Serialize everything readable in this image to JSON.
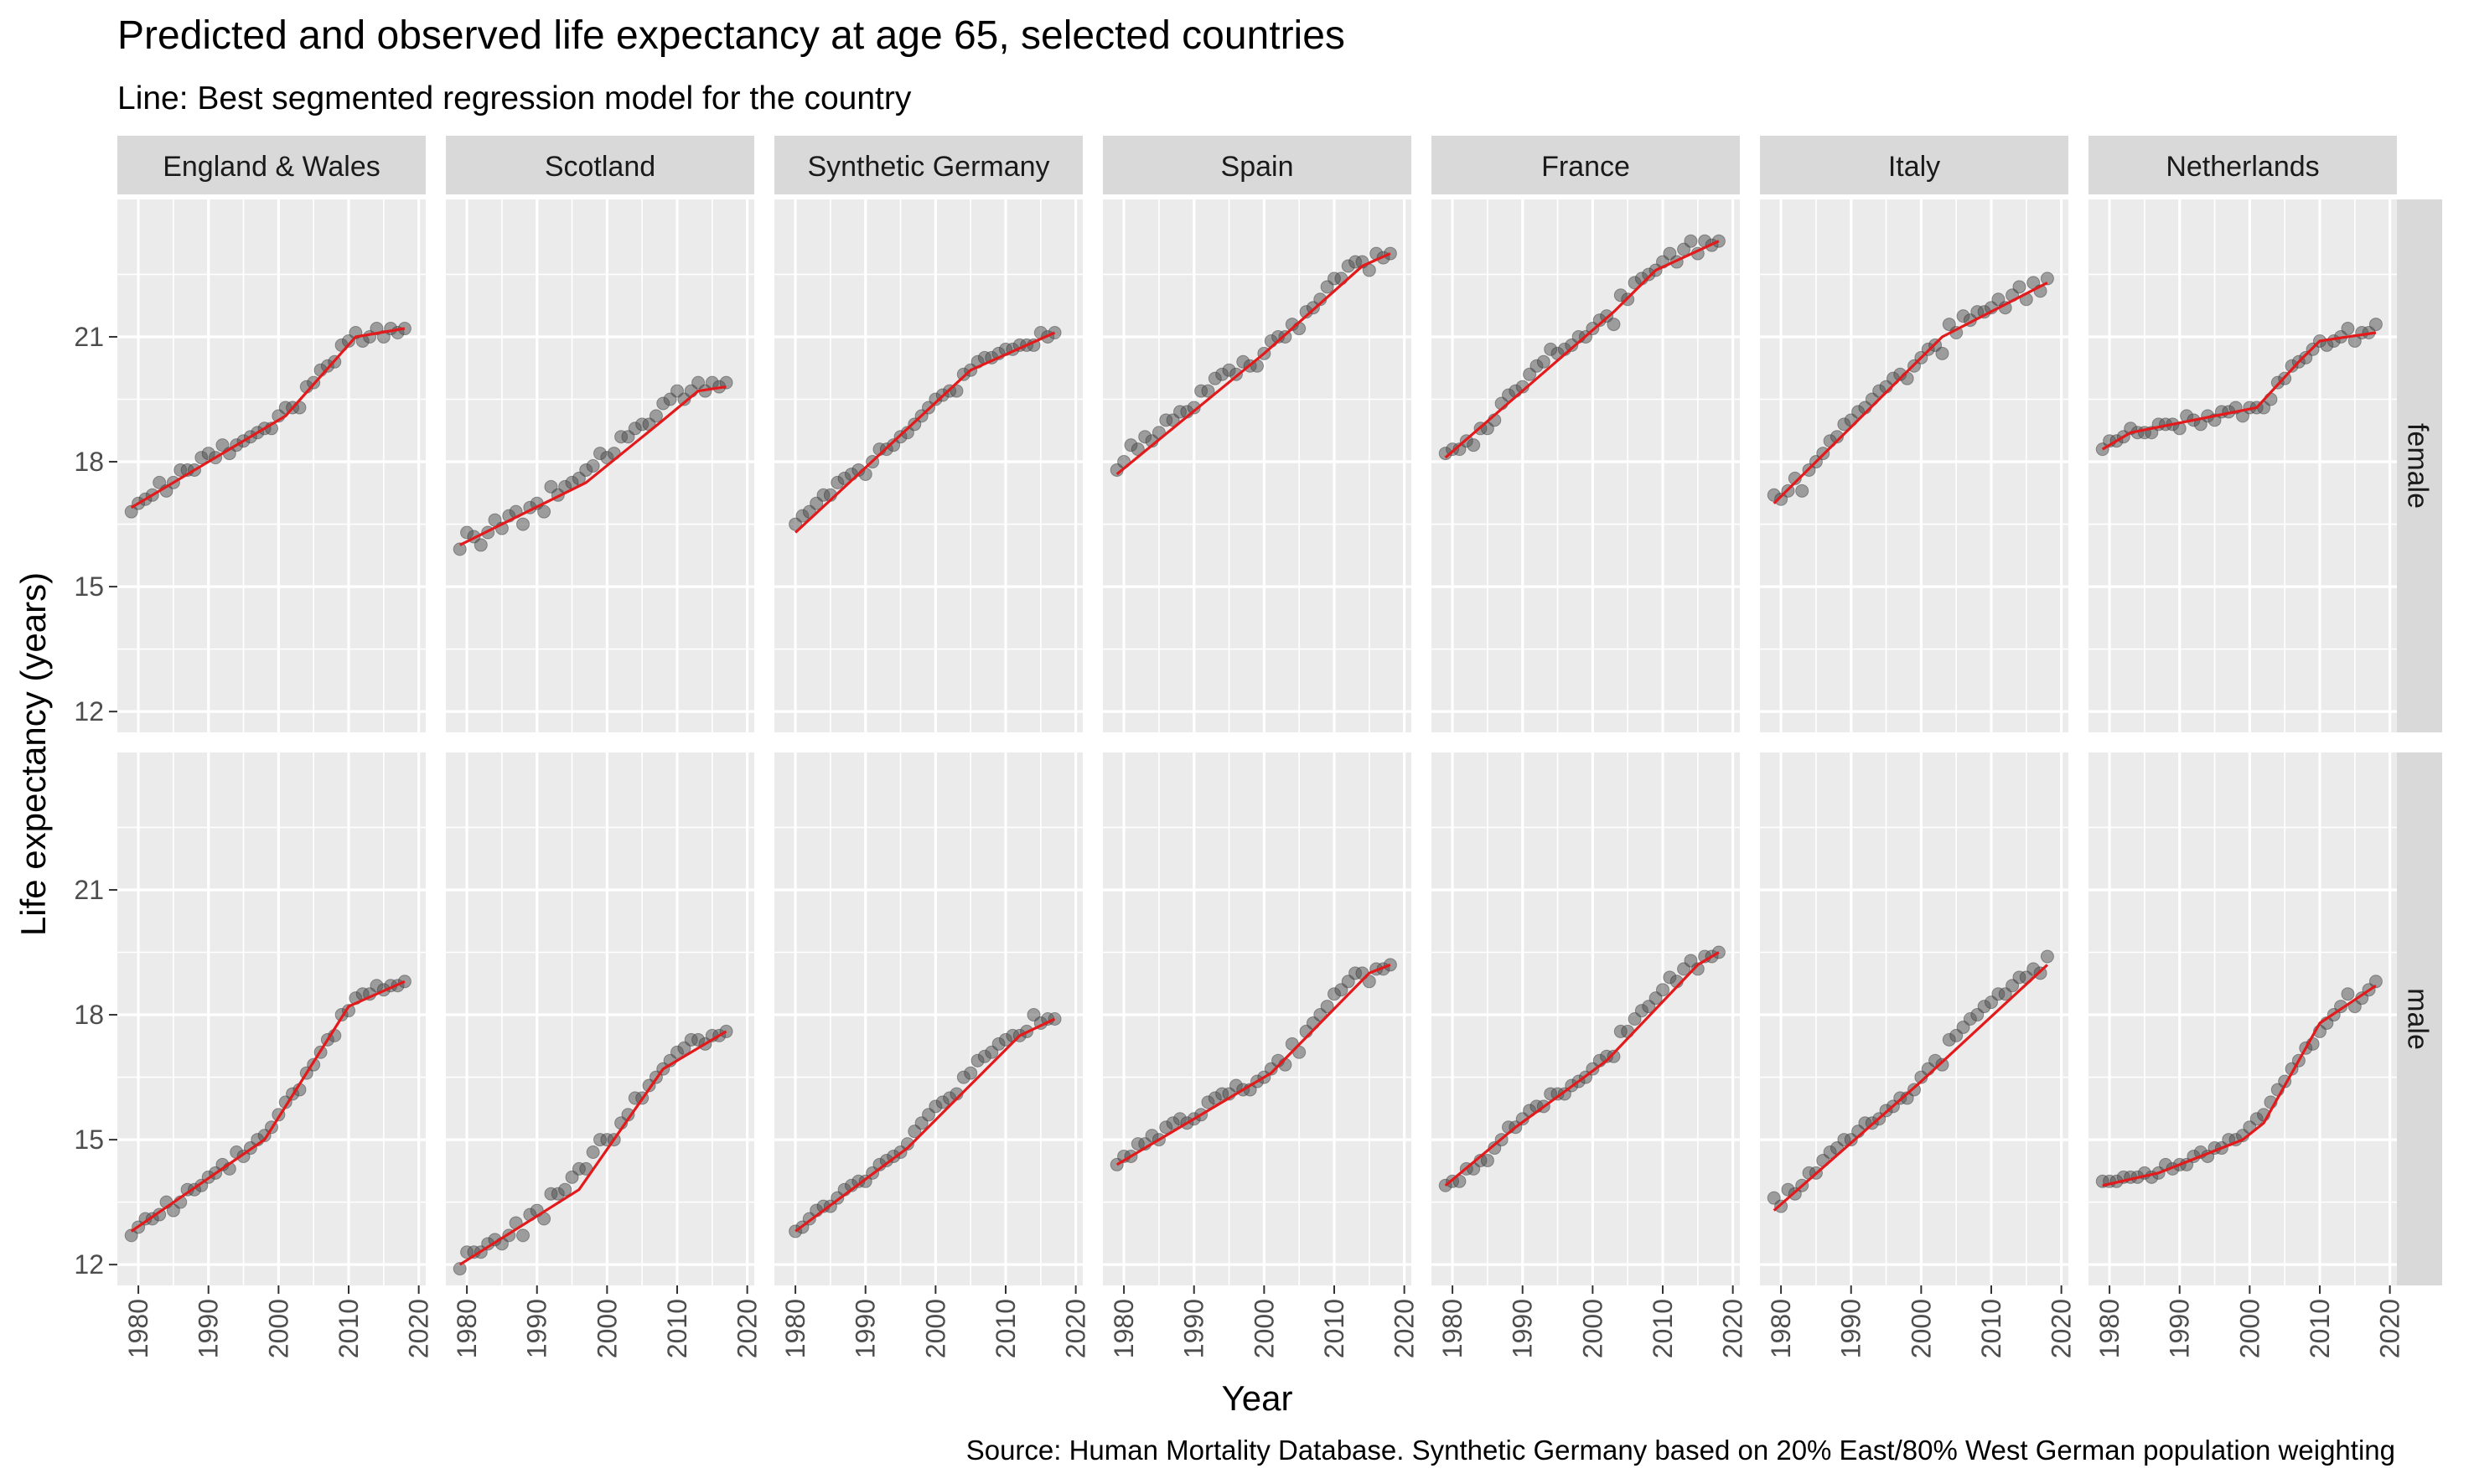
{
  "chart_data": {
    "type": "line",
    "title": "Predicted and observed life expectancy at age 65, selected countries",
    "subtitle": "Line: Best segmented regression model for the country",
    "xlabel": "Year",
    "ylabel": "Life expectancy (years)",
    "caption": "Source: Human Mortality Database. Synthetic Germany based on 20% East/80% West German population weighting",
    "xlim": [
      1977,
      2021
    ],
    "ylim": [
      11.5,
      24.3
    ],
    "x_ticks": [
      1980,
      1990,
      2000,
      2010,
      2020
    ],
    "y_ticks": [
      12,
      15,
      18,
      21
    ],
    "grid": true,
    "colors": {
      "panel_bg": "#ebebeb",
      "grid": "#ffffff",
      "strip_bg": "#d9d9d9",
      "point": "#4d4d4d",
      "fit_line": "#e31a1c"
    },
    "columns": [
      "England & Wales",
      "Scotland",
      "Synthetic Germany",
      "Spain",
      "France",
      "Italy",
      "Netherlands"
    ],
    "rows": [
      "female",
      "male"
    ],
    "panels": {
      "female": {
        "England & Wales": {
          "observed": {
            "x_start": 1979,
            "values": [
              16.8,
              17.0,
              17.1,
              17.2,
              17.5,
              17.3,
              17.5,
              17.8,
              17.8,
              17.8,
              18.1,
              18.2,
              18.1,
              18.4,
              18.2,
              18.4,
              18.5,
              18.6,
              18.7,
              18.8,
              18.8,
              19.1,
              19.3,
              19.3,
              19.3,
              19.8,
              19.9,
              20.2,
              20.3,
              20.4,
              20.8,
              20.9,
              21.1,
              20.9,
              21.0,
              21.2,
              21.0,
              21.2,
              21.1,
              21.2
            ]
          },
          "fit": [
            [
              1979,
              16.9
            ],
            [
              2001,
              19.1
            ],
            [
              2011,
              21.0
            ],
            [
              2018,
              21.2
            ]
          ]
        },
        "Scotland": {
          "observed": {
            "x_start": 1979,
            "values": [
              15.9,
              16.3,
              16.2,
              16.0,
              16.3,
              16.6,
              16.4,
              16.7,
              16.8,
              16.5,
              16.9,
              17.0,
              16.8,
              17.4,
              17.2,
              17.4,
              17.5,
              17.6,
              17.8,
              17.9,
              18.2,
              18.1,
              18.2,
              18.6,
              18.6,
              18.8,
              18.9,
              18.9,
              19.1,
              19.4,
              19.5,
              19.7,
              19.5,
              19.7,
              19.9,
              19.7,
              19.9,
              19.8,
              19.9
            ]
          },
          "fit": [
            [
              1979,
              16.0
            ],
            [
              1997,
              17.5
            ],
            [
              2008,
              19.0
            ],
            [
              2013,
              19.7
            ],
            [
              2017,
              19.8
            ]
          ]
        },
        "Synthetic Germany": {
          "observed": {
            "x_start": 1980,
            "values": [
              16.5,
              16.7,
              16.8,
              17.0,
              17.2,
              17.2,
              17.5,
              17.6,
              17.7,
              17.8,
              17.7,
              18.0,
              18.3,
              18.3,
              18.4,
              18.6,
              18.7,
              18.9,
              19.1,
              19.3,
              19.5,
              19.6,
              19.7,
              19.7,
              20.1,
              20.2,
              20.4,
              20.5,
              20.5,
              20.6,
              20.7,
              20.7,
              20.8,
              20.8,
              20.8,
              21.1,
              21.0,
              21.1
            ]
          },
          "fit": [
            [
              1980,
              16.3
            ],
            [
              2005,
              20.2
            ],
            [
              2017,
              21.1
            ]
          ]
        },
        "Spain": {
          "observed": {
            "x_start": 1979,
            "values": [
              17.8,
              18.0,
              18.4,
              18.3,
              18.6,
              18.5,
              18.7,
              19.0,
              19.0,
              19.2,
              19.2,
              19.3,
              19.7,
              19.7,
              20.0,
              20.1,
              20.2,
              20.1,
              20.4,
              20.3,
              20.3,
              20.6,
              20.9,
              21.0,
              21.0,
              21.3,
              21.2,
              21.6,
              21.7,
              21.9,
              22.2,
              22.4,
              22.4,
              22.7,
              22.8,
              22.8,
              22.6,
              23.0,
              22.9,
              23.0
            ]
          },
          "fit": [
            [
              1979,
              17.7
            ],
            [
              2000,
              20.6
            ],
            [
              2014,
              22.7
            ],
            [
              2018,
              23.0
            ]
          ]
        },
        "France": {
          "observed": {
            "x_start": 1979,
            "values": [
              18.2,
              18.3,
              18.3,
              18.5,
              18.4,
              18.8,
              18.8,
              19.0,
              19.4,
              19.6,
              19.7,
              19.8,
              20.1,
              20.3,
              20.4,
              20.7,
              20.6,
              20.7,
              20.8,
              21.0,
              21.0,
              21.2,
              21.4,
              21.5,
              21.3,
              22.0,
              21.9,
              22.3,
              22.4,
              22.5,
              22.6,
              22.8,
              23.0,
              22.8,
              23.1,
              23.3,
              23.0,
              23.3,
              23.2,
              23.3
            ]
          },
          "fit": [
            [
              1979,
              18.1
            ],
            [
              2003,
              21.6
            ],
            [
              2009,
              22.6
            ],
            [
              2018,
              23.3
            ]
          ]
        },
        "Italy": {
          "observed": {
            "x_start": 1979,
            "values": [
              17.2,
              17.1,
              17.3,
              17.6,
              17.3,
              17.8,
              18.0,
              18.2,
              18.5,
              18.6,
              18.9,
              19.0,
              19.2,
              19.3,
              19.5,
              19.7,
              19.8,
              20.0,
              20.1,
              20.0,
              20.3,
              20.5,
              20.7,
              20.8,
              20.6,
              21.3,
              21.1,
              21.5,
              21.4,
              21.6,
              21.6,
              21.7,
              21.9,
              21.7,
              22.0,
              22.2,
              21.9,
              22.3,
              22.1,
              22.4
            ]
          },
          "fit": [
            [
              1979,
              17.0
            ],
            [
              2003,
              21.0
            ],
            [
              2018,
              22.3
            ]
          ]
        },
        "Netherlands": {
          "observed": {
            "x_start": 1979,
            "values": [
              18.3,
              18.5,
              18.5,
              18.6,
              18.8,
              18.7,
              18.7,
              18.7,
              18.9,
              18.9,
              18.9,
              18.8,
              19.1,
              19.0,
              18.9,
              19.1,
              19.0,
              19.2,
              19.2,
              19.3,
              19.1,
              19.3,
              19.3,
              19.3,
              19.5,
              19.9,
              20.0,
              20.3,
              20.4,
              20.5,
              20.7,
              20.9,
              20.8,
              20.9,
              21.0,
              21.2,
              20.9,
              21.1,
              21.1,
              21.3
            ]
          },
          "fit": [
            [
              1979,
              18.3
            ],
            [
              1983,
              18.7
            ],
            [
              2001,
              19.3
            ],
            [
              2007,
              20.4
            ],
            [
              2010,
              20.9
            ],
            [
              2018,
              21.1
            ]
          ]
        }
      },
      "male": {
        "England & Wales": {
          "observed": {
            "x_start": 1979,
            "values": [
              12.7,
              12.9,
              13.1,
              13.1,
              13.2,
              13.5,
              13.3,
              13.5,
              13.8,
              13.8,
              13.9,
              14.1,
              14.2,
              14.4,
              14.3,
              14.7,
              14.6,
              14.8,
              15.0,
              15.1,
              15.3,
              15.6,
              15.9,
              16.1,
              16.2,
              16.6,
              16.8,
              17.1,
              17.4,
              17.5,
              18.0,
              18.1,
              18.4,
              18.5,
              18.5,
              18.7,
              18.6,
              18.7,
              18.7,
              18.8
            ]
          },
          "fit": [
            [
              1979,
              12.8
            ],
            [
              1998,
              15.0
            ],
            [
              2010,
              18.2
            ],
            [
              2018,
              18.8
            ]
          ]
        },
        "Scotland": {
          "observed": {
            "x_start": 1979,
            "values": [
              11.9,
              12.3,
              12.3,
              12.3,
              12.5,
              12.6,
              12.5,
              12.7,
              13.0,
              12.7,
              13.2,
              13.3,
              13.1,
              13.7,
              13.7,
              13.8,
              14.1,
              14.3,
              14.3,
              14.7,
              15.0,
              15.0,
              15.0,
              15.4,
              15.6,
              16.0,
              16.0,
              16.3,
              16.5,
              16.7,
              16.9,
              17.1,
              17.2,
              17.4,
              17.4,
              17.3,
              17.5,
              17.5,
              17.6
            ]
          },
          "fit": [
            [
              1979,
              12.0
            ],
            [
              1996,
              13.8
            ],
            [
              2008,
              16.7
            ],
            [
              2017,
              17.6
            ]
          ]
        },
        "Synthetic Germany": {
          "observed": {
            "x_start": 1980,
            "values": [
              12.8,
              12.9,
              13.1,
              13.3,
              13.4,
              13.4,
              13.6,
              13.8,
              13.9,
              14.0,
              14.0,
              14.2,
              14.4,
              14.5,
              14.6,
              14.7,
              14.9,
              15.2,
              15.4,
              15.6,
              15.8,
              15.9,
              16.0,
              16.1,
              16.5,
              16.6,
              16.9,
              17.0,
              17.1,
              17.3,
              17.4,
              17.5,
              17.5,
              17.6,
              18.0,
              17.8,
              17.9,
              17.9
            ]
          },
          "fit": [
            [
              1980,
              12.8
            ],
            [
              1996,
              14.8
            ],
            [
              2012,
              17.5
            ],
            [
              2017,
              17.9
            ]
          ]
        },
        "Spain": {
          "observed": {
            "x_start": 1979,
            "values": [
              14.4,
              14.6,
              14.6,
              14.9,
              14.9,
              15.1,
              15.0,
              15.3,
              15.4,
              15.5,
              15.4,
              15.5,
              15.6,
              15.9,
              16.0,
              16.1,
              16.1,
              16.3,
              16.2,
              16.2,
              16.4,
              16.5,
              16.7,
              16.9,
              16.8,
              17.3,
              17.1,
              17.6,
              17.8,
              18.0,
              18.2,
              18.5,
              18.6,
              18.8,
              19.0,
              19.0,
              18.8,
              19.1,
              19.1,
              19.2
            ]
          },
          "fit": [
            [
              1979,
              14.4
            ],
            [
              2001,
              16.6
            ],
            [
              2015,
              19.0
            ],
            [
              2018,
              19.2
            ]
          ]
        },
        "France": {
          "observed": {
            "x_start": 1979,
            "values": [
              13.9,
              14.0,
              14.0,
              14.3,
              14.3,
              14.5,
              14.5,
              14.8,
              15.0,
              15.3,
              15.3,
              15.5,
              15.7,
              15.8,
              15.8,
              16.1,
              16.1,
              16.1,
              16.3,
              16.4,
              16.5,
              16.7,
              16.9,
              17.0,
              17.0,
              17.6,
              17.6,
              17.9,
              18.1,
              18.2,
              18.4,
              18.6,
              18.9,
              18.8,
              19.1,
              19.3,
              19.1,
              19.4,
              19.4,
              19.5
            ]
          },
          "fit": [
            [
              1979,
              13.9
            ],
            [
              1989,
              15.3
            ],
            [
              1998,
              16.4
            ],
            [
              2002,
              16.9
            ],
            [
              2015,
              19.2
            ],
            [
              2018,
              19.5
            ]
          ]
        },
        "Italy": {
          "observed": {
            "x_start": 1979,
            "values": [
              13.6,
              13.4,
              13.8,
              13.7,
              13.9,
              14.2,
              14.2,
              14.5,
              14.7,
              14.8,
              15.0,
              15.0,
              15.2,
              15.4,
              15.4,
              15.5,
              15.7,
              15.8,
              16.0,
              16.0,
              16.2,
              16.5,
              16.7,
              16.9,
              16.8,
              17.4,
              17.5,
              17.7,
              17.9,
              18.0,
              18.2,
              18.3,
              18.5,
              18.5,
              18.7,
              18.9,
              18.9,
              19.1,
              19.0,
              19.4
            ]
          },
          "fit": [
            [
              1979,
              13.3
            ],
            [
              2000,
              16.4
            ],
            [
              2018,
              19.2
            ]
          ]
        },
        "Netherlands": {
          "observed": {
            "x_start": 1979,
            "values": [
              14.0,
              14.0,
              14.0,
              14.1,
              14.1,
              14.1,
              14.2,
              14.1,
              14.2,
              14.4,
              14.3,
              14.4,
              14.4,
              14.6,
              14.7,
              14.6,
              14.8,
              14.8,
              15.0,
              15.0,
              15.1,
              15.3,
              15.5,
              15.6,
              15.9,
              16.2,
              16.4,
              16.7,
              16.9,
              17.2,
              17.3,
              17.6,
              17.8,
              18.0,
              18.2,
              18.5,
              18.2,
              18.4,
              18.6,
              18.8
            ]
          },
          "fit": [
            [
              1979,
              13.9
            ],
            [
              1987,
              14.2
            ],
            [
              1999,
              15.0
            ],
            [
              2002,
              15.4
            ],
            [
              2010,
              17.8
            ],
            [
              2018,
              18.7
            ]
          ]
        }
      }
    }
  }
}
